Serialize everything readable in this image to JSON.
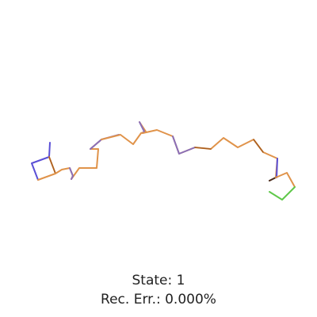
{
  "viewer": {
    "state_label": "State: 1",
    "error_label": "Rec. Err.: 0.000%"
  },
  "structure": {
    "colors": {
      "backbone": "#e0934a",
      "backbone_dark": "#a85f22",
      "residue_blue": "#5a4fd6",
      "residue_purple": "#8a6fb8",
      "residue_green": "#5fc84a",
      "residue_dark": "#4a2a1a"
    }
  }
}
